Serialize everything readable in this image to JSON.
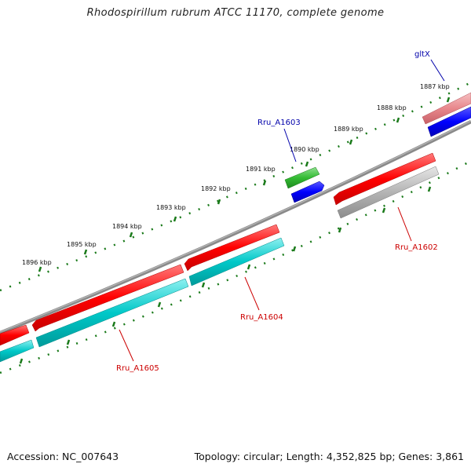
{
  "title": "Rhodospirillum rubrum ATCC 11170, complete genome",
  "footer": {
    "accession": "Accession: NC_007643",
    "summary": "Topology: circular; Length: 4,352,825 bp; Genes: 3,861"
  },
  "ticks": [
    "1887 kbp",
    "1888 kbp",
    "1889 kbp",
    "1890 kbp",
    "1891 kbp",
    "1892 kbp",
    "1893 kbp",
    "1894 kbp",
    "1895 kbp",
    "1896 kbp"
  ],
  "genes": [
    {
      "name": "gltX",
      "color": "#0000aa"
    },
    {
      "name": "Rru_A1603",
      "color": "#0000aa"
    },
    {
      "name": "Rru_A1602",
      "color": "#cc0000"
    },
    {
      "name": "Rru_A1604",
      "color": "#cc0000"
    },
    {
      "name": "Rru_A1605",
      "color": "#cc0000"
    }
  ],
  "colors": {
    "forward_gene": "#ff0000",
    "cds_cyan": "#00c8c8",
    "cds_blue": "#0000ff",
    "cds_green": "#33bb33",
    "cds_gray": "#aaaaaa",
    "cds_pink": "#e8888c",
    "backbone": "#777777",
    "tick": "#1a7a1a"
  }
}
